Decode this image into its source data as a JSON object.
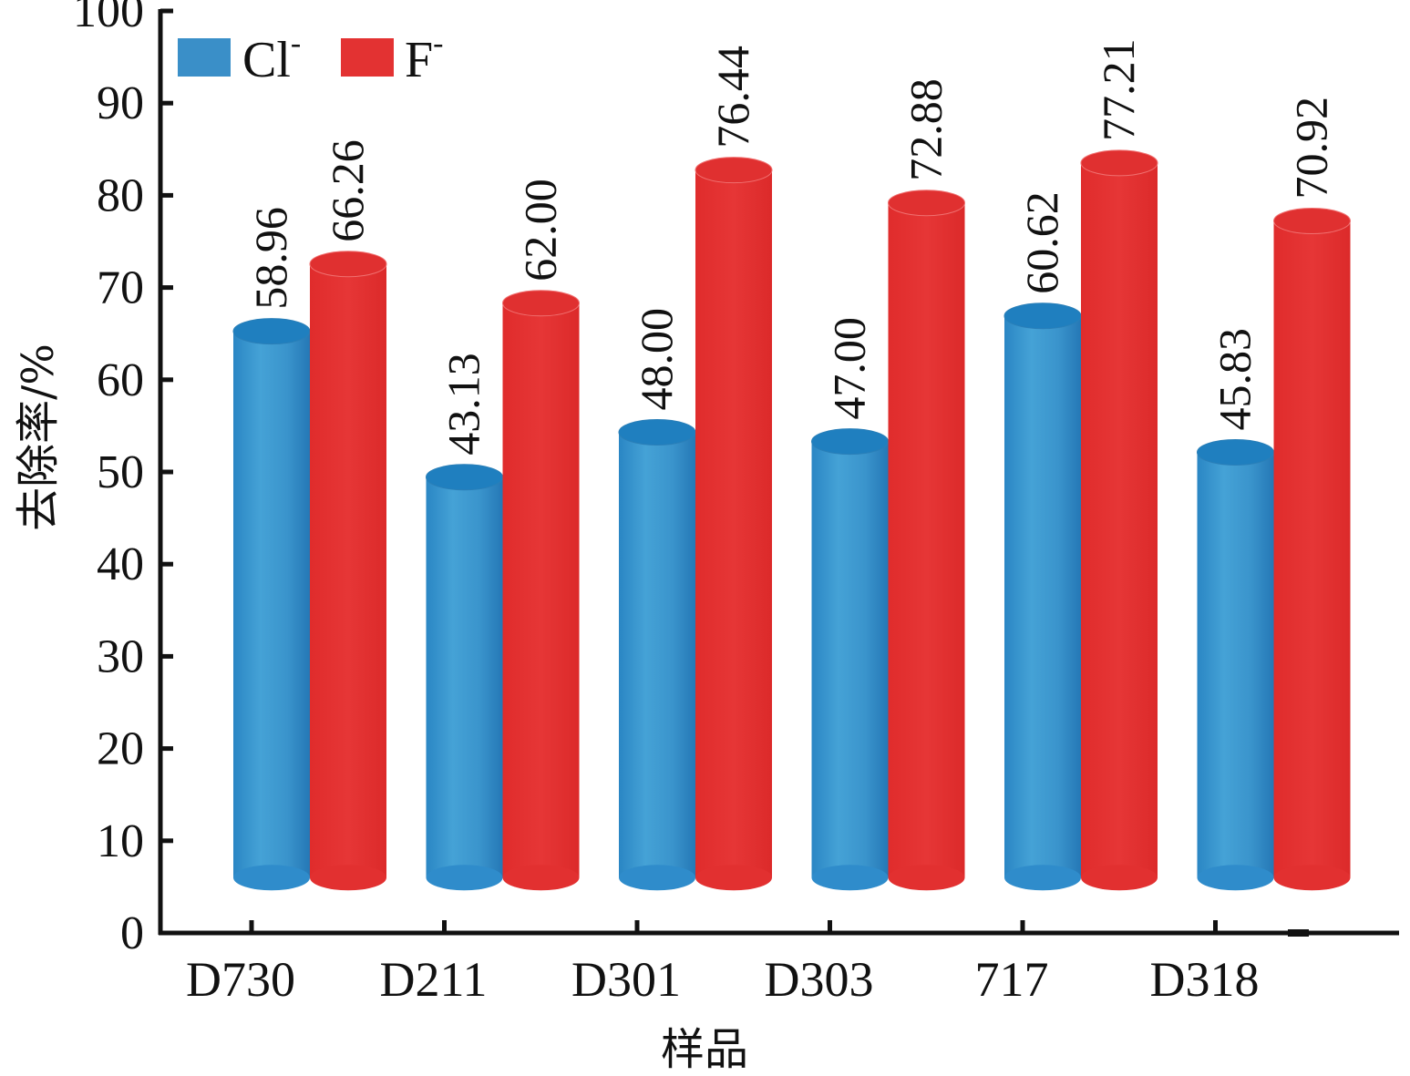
{
  "chart_data": {
    "type": "bar",
    "title": "",
    "xlabel": "样品",
    "ylabel": "去除率/%",
    "ylim": [
      0,
      100
    ],
    "yticks": [
      0,
      10,
      20,
      30,
      40,
      50,
      60,
      70,
      80,
      90,
      100
    ],
    "grid": false,
    "legend_position": "top-left",
    "categories": [
      "D730",
      "D211",
      "D301",
      "D303",
      "717",
      "D318"
    ],
    "series": [
      {
        "name": "Cl",
        "superscript": "-",
        "color": "#3a8fc8",
        "values": [
          58.96,
          43.13,
          48.0,
          47.0,
          60.62,
          45.83
        ],
        "labels": [
          "58.96",
          "43.13",
          "48.00",
          "47.00",
          "60.62",
          "45.83"
        ]
      },
      {
        "name": "F",
        "superscript": "-",
        "color": "#e33232",
        "values": [
          66.26,
          62.0,
          76.44,
          72.88,
          77.21,
          70.92
        ],
        "labels": [
          "66.26",
          "62.00",
          "76.44",
          "72.88",
          "77.21",
          "70.92"
        ]
      }
    ],
    "style": "3d-cylinder",
    "data_labels_rotated": true
  }
}
